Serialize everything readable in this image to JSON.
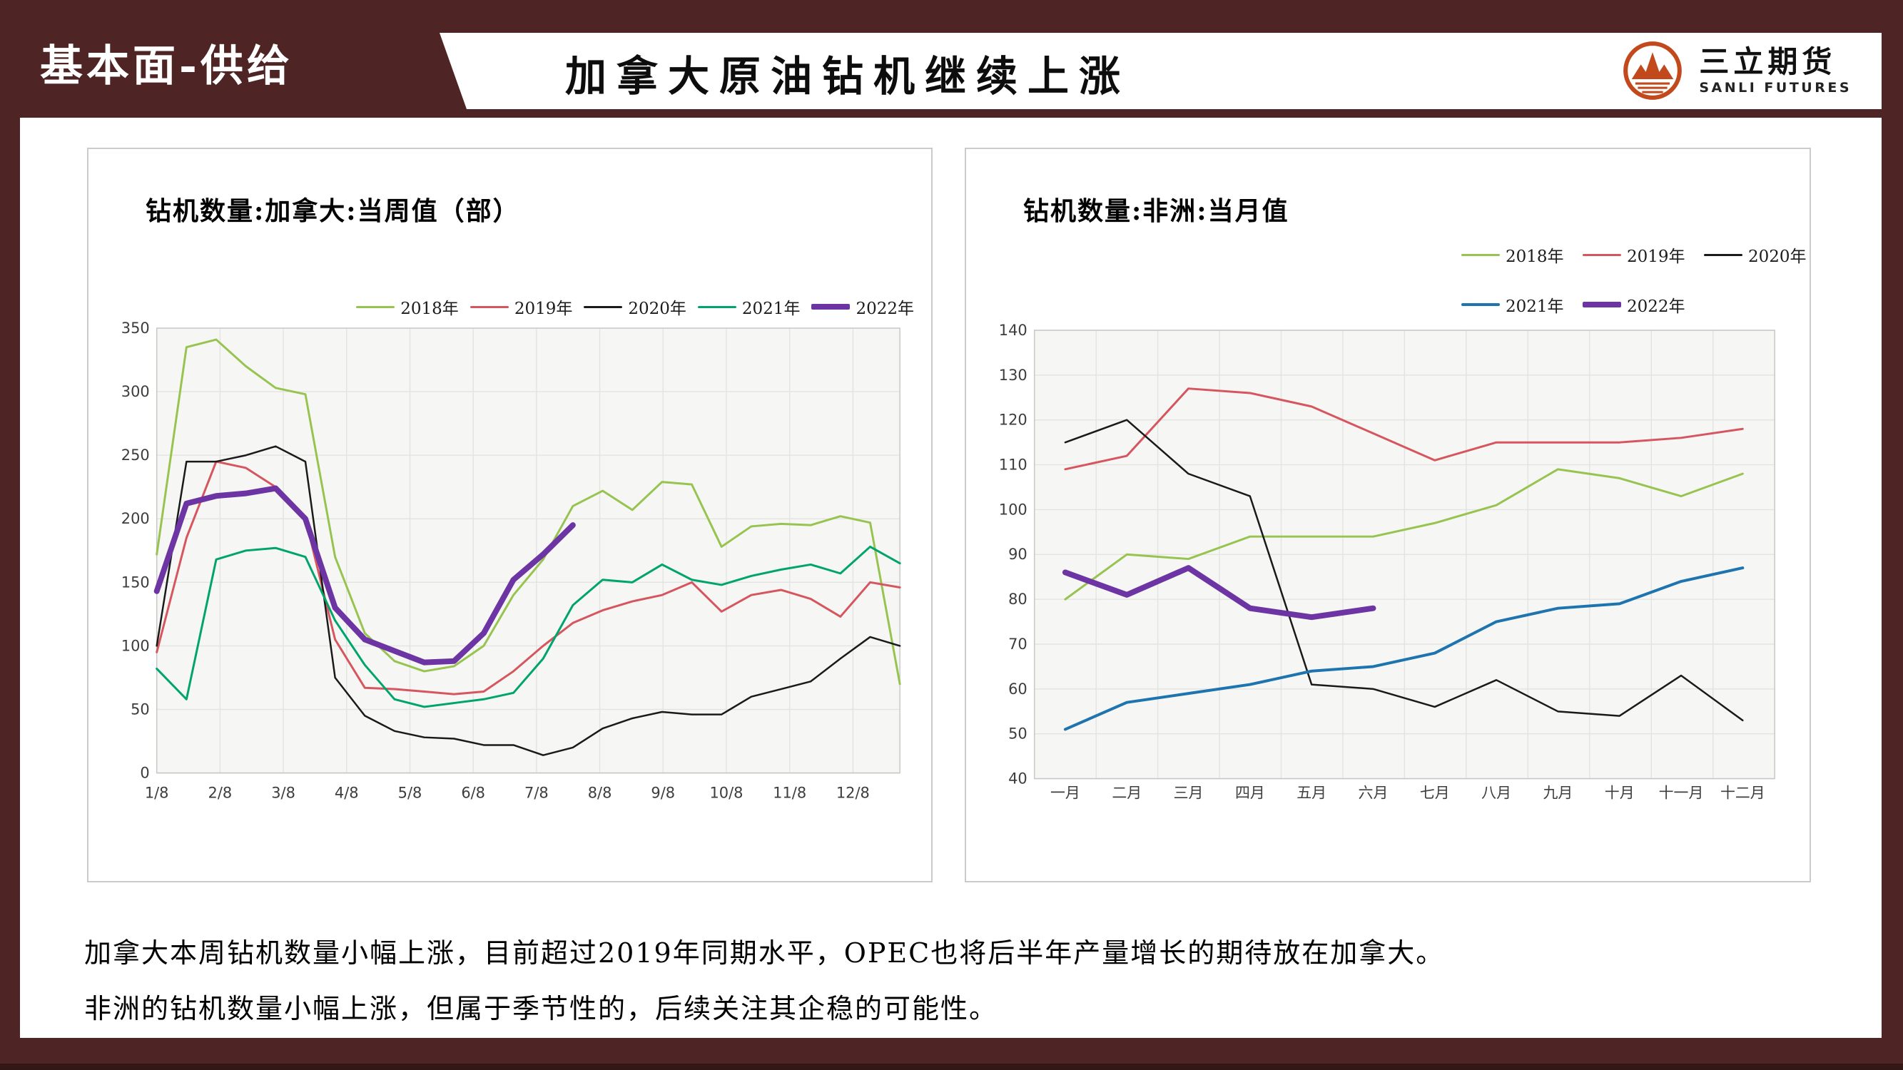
{
  "header": {
    "section_label": "基本面-供给",
    "title": "加拿大原油钻机继续上涨"
  },
  "logo": {
    "name": "三立期货",
    "subtitle": "SANLI FUTURES"
  },
  "colors": {
    "maroon": "#4E2424",
    "maroon_dark": "#331717",
    "plot_bg": "#F6F6F4",
    "grid": "#E3E3E1",
    "plot_border": "#C6C6C4",
    "axis_text": "#3D3D3D",
    "y2018": "#97C450",
    "y2019": "#D6565F",
    "y2020": "#1A1A1A",
    "y2021_canada": "#00A46C",
    "y2021_africa": "#1E74AE",
    "y2022": "#6C35A3",
    "logo_orange": "#C2491B"
  },
  "chart_data": [
    {
      "type": "line",
      "title": "钻机数量:加拿大:当周值（部）",
      "xlabel": "",
      "ylabel": "",
      "ylim": [
        0,
        350
      ],
      "y_tick_step": 50,
      "grid": true,
      "legend_position": "top-right",
      "x_tick_labels": [
        "1/8",
        "2/8",
        "3/8",
        "4/8",
        "5/8",
        "6/8",
        "7/8",
        "8/8",
        "9/8",
        "10/8",
        "11/8",
        "12/8"
      ],
      "x_resolution": "weekly (26 sampled points per year)",
      "points_per_year": 26,
      "series": [
        {
          "key": "2018",
          "label": "2018年",
          "color_key": "y2018",
          "width": 3,
          "values": [
            172,
            335,
            341,
            320,
            303,
            298,
            170,
            110,
            88,
            80,
            84,
            100,
            140,
            168,
            210,
            222,
            207,
            229,
            227,
            178,
            194,
            196,
            195,
            202,
            197,
            70
          ]
        },
        {
          "key": "2019",
          "label": "2019年",
          "color_key": "y2019",
          "width": 3,
          "values": [
            95,
            185,
            245,
            240,
            225,
            200,
            105,
            67,
            66,
            64,
            62,
            64,
            80,
            100,
            118,
            128,
            135,
            140,
            150,
            127,
            140,
            144,
            137,
            123,
            150,
            146
          ]
        },
        {
          "key": "2020",
          "label": "2020年",
          "color_key": "y2020",
          "width": 2.5,
          "values": [
            100,
            245,
            245,
            250,
            257,
            245,
            75,
            45,
            33,
            28,
            27,
            22,
            22,
            14,
            20,
            35,
            43,
            48,
            46,
            46,
            60,
            66,
            72,
            90,
            107,
            100
          ]
        },
        {
          "key": "2021",
          "label": "2021年",
          "color_key": "y2021_canada",
          "width": 3,
          "values": [
            82,
            58,
            168,
            175,
            177,
            170,
            120,
            85,
            58,
            52,
            55,
            58,
            63,
            90,
            132,
            152,
            150,
            164,
            152,
            148,
            155,
            160,
            164,
            157,
            178,
            165
          ]
        },
        {
          "key": "2022",
          "label": "2022年",
          "color_key": "y2022",
          "width": 8,
          "values": [
            143,
            212,
            218,
            220,
            224,
            200,
            130,
            105,
            96,
            87,
            88,
            110,
            152,
            172,
            195
          ]
        }
      ]
    },
    {
      "type": "line",
      "title": "钻机数量:非洲:当月值",
      "xlabel": "",
      "ylabel": "",
      "ylim": [
        40,
        140
      ],
      "y_tick_step": 10,
      "grid": true,
      "legend_position": "top-right-two-rows",
      "categories": [
        "一月",
        "二月",
        "三月",
        "四月",
        "五月",
        "六月",
        "七月",
        "八月",
        "九月",
        "十月",
        "十一月",
        "十二月"
      ],
      "series": [
        {
          "key": "2018",
          "label": "2018年",
          "color_key": "y2018",
          "width": 3,
          "values": [
            80,
            90,
            89,
            94,
            94,
            94,
            97,
            101,
            109,
            107,
            103,
            108
          ]
        },
        {
          "key": "2019",
          "label": "2019年",
          "color_key": "y2019",
          "width": 3,
          "values": [
            109,
            112,
            127,
            126,
            123,
            117,
            111,
            115,
            115,
            115,
            116,
            118
          ]
        },
        {
          "key": "2020",
          "label": "2020年",
          "color_key": "y2020",
          "width": 2.5,
          "values": [
            115,
            120,
            108,
            103,
            61,
            60,
            56,
            62,
            55,
            54,
            63,
            53
          ]
        },
        {
          "key": "2021",
          "label": "2021年",
          "color_key": "y2021_africa",
          "width": 4,
          "values": [
            51,
            57,
            59,
            61,
            64,
            65,
            68,
            75,
            78,
            79,
            84,
            87
          ]
        },
        {
          "key": "2022",
          "label": "2022年",
          "color_key": "y2022",
          "width": 8,
          "values": [
            86,
            81,
            87,
            78,
            76,
            78
          ]
        }
      ]
    }
  ],
  "commentary": [
    "加拿大本周钻机数量小幅上涨，目前超过2019年同期水平，OPEC也将后半年产量增长的期待放在加拿大。",
    "非洲的钻机数量小幅上涨，但属于季节性的，后续关注其企稳的可能性。"
  ]
}
